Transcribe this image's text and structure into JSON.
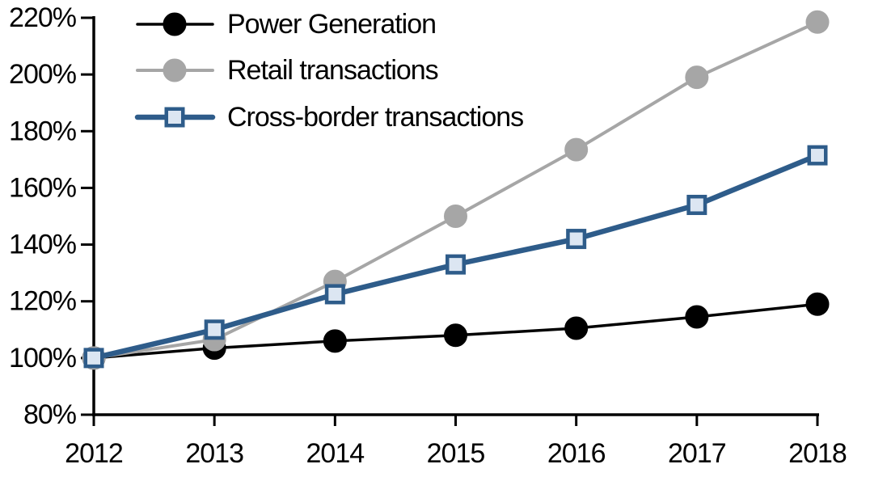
{
  "chart_data": {
    "type": "line",
    "title": "",
    "xlabel": "",
    "ylabel": "",
    "x": [
      2012,
      2013,
      2014,
      2015,
      2016,
      2017,
      2018
    ],
    "series": [
      {
        "name": "Power Generation",
        "line_color": "#000000",
        "line_width": 3.5,
        "marker": "circle",
        "marker_fill": "#000000",
        "marker_stroke": "#000000",
        "values": [
          100,
          103.5,
          106,
          108,
          110.5,
          114.5,
          119
        ]
      },
      {
        "name": "Retail transactions",
        "line_color": "#a6a6a6",
        "line_width": 4,
        "marker": "circle",
        "marker_fill": "#a6a6a6",
        "marker_stroke": "#a6a6a6",
        "values": [
          100,
          106.5,
          127,
          150,
          173.5,
          199,
          218.5
        ]
      },
      {
        "name": "Cross-border transactions",
        "line_color": "#2e5c8a",
        "line_width": 6.5,
        "marker": "square",
        "marker_fill": "#dce6f2",
        "marker_stroke": "#2e5c8a",
        "values": [
          100,
          110,
          122.5,
          133,
          142,
          154,
          171.5
        ]
      }
    ],
    "ylim": [
      80,
      220
    ],
    "yticks": [
      {
        "value": 80,
        "label": "80%"
      },
      {
        "value": 100,
        "label": "100%"
      },
      {
        "value": 120,
        "label": "120%"
      },
      {
        "value": 140,
        "label": "140%"
      },
      {
        "value": 160,
        "label": "160%"
      },
      {
        "value": 180,
        "label": "180%"
      },
      {
        "value": 200,
        "label": "200%"
      },
      {
        "value": 220,
        "label": "220%"
      }
    ],
    "xtick_labels": [
      "2012",
      "2013",
      "2014",
      "2015",
      "2016",
      "2017",
      "2018"
    ],
    "grid": false,
    "legend_position": "top-left",
    "axis_color": "#000000",
    "background_color": "#ffffff"
  }
}
